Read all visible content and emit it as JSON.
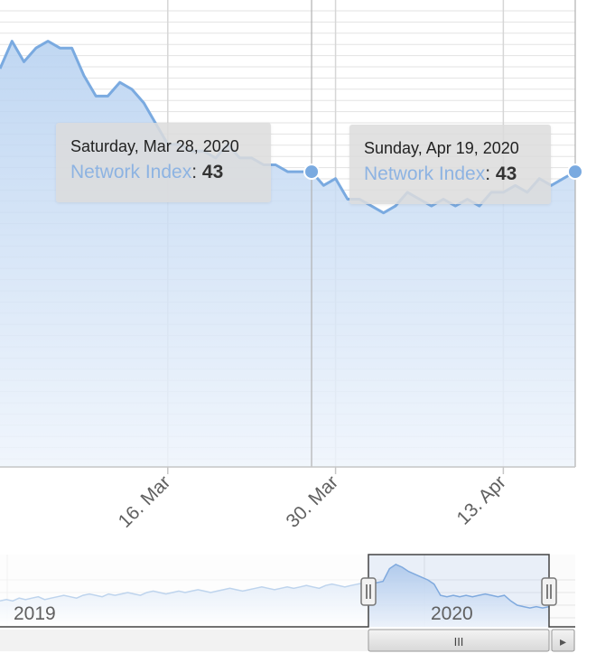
{
  "chart_data": {
    "type": "area",
    "series": [
      {
        "name": "Network Index",
        "color": "#7aaae0",
        "points": [
          [
            "2020-03-02",
            58
          ],
          [
            "2020-03-03",
            62
          ],
          [
            "2020-03-04",
            59
          ],
          [
            "2020-03-05",
            61
          ],
          [
            "2020-03-06",
            62
          ],
          [
            "2020-03-07",
            61
          ],
          [
            "2020-03-08",
            61
          ],
          [
            "2020-03-09",
            57
          ],
          [
            "2020-03-10",
            54
          ],
          [
            "2020-03-11",
            54
          ],
          [
            "2020-03-12",
            56
          ],
          [
            "2020-03-13",
            55
          ],
          [
            "2020-03-14",
            53
          ],
          [
            "2020-03-15",
            50
          ],
          [
            "2020-03-16",
            47
          ],
          [
            "2020-03-17",
            47
          ],
          [
            "2020-03-18",
            46
          ],
          [
            "2020-03-19",
            46
          ],
          [
            "2020-03-20",
            45
          ],
          [
            "2020-03-21",
            47
          ],
          [
            "2020-03-22",
            45
          ],
          [
            "2020-03-23",
            45
          ],
          [
            "2020-03-24",
            44
          ],
          [
            "2020-03-25",
            44
          ],
          [
            "2020-03-26",
            43
          ],
          [
            "2020-03-27",
            43
          ],
          [
            "2020-03-28",
            43
          ],
          [
            "2020-03-29",
            41
          ],
          [
            "2020-03-30",
            42
          ],
          [
            "2020-03-31",
            39
          ],
          [
            "2020-04-01",
            39
          ],
          [
            "2020-04-02",
            38
          ],
          [
            "2020-04-03",
            37
          ],
          [
            "2020-04-04",
            38
          ],
          [
            "2020-04-05",
            40
          ],
          [
            "2020-04-06",
            39
          ],
          [
            "2020-04-07",
            38
          ],
          [
            "2020-04-08",
            39
          ],
          [
            "2020-04-09",
            38
          ],
          [
            "2020-04-10",
            39
          ],
          [
            "2020-04-11",
            38
          ],
          [
            "2020-04-12",
            40
          ],
          [
            "2020-04-13",
            40
          ],
          [
            "2020-04-14",
            41
          ],
          [
            "2020-04-15",
            40
          ],
          [
            "2020-04-16",
            42
          ],
          [
            "2020-04-17",
            41
          ],
          [
            "2020-04-18",
            42
          ],
          [
            "2020-04-19",
            43
          ]
        ]
      }
    ],
    "x_ticks": [
      {
        "date": "2020-03-16",
        "label": "16. Mar"
      },
      {
        "date": "2020-03-30",
        "label": "30. Mar"
      },
      {
        "date": "2020-04-13",
        "label": "13. Apr"
      }
    ],
    "xlim": [
      "2020-03-02",
      "2020-04-19"
    ],
    "ylim": [
      0,
      68
    ],
    "grid": true,
    "tooltips": [
      {
        "date": "2020-03-28",
        "date_label": "Saturday, Mar 28, 2020",
        "series": "Network Index",
        "value": "43"
      },
      {
        "date": "2020-04-19",
        "date_label": "Sunday, Apr 19, 2020",
        "series": "Network Index",
        "value": "43"
      }
    ],
    "navigator": {
      "labels": [
        "2019",
        "2020"
      ],
      "selection": [
        "2020-03-02",
        "2020-04-19"
      ],
      "scrollbar_grip": "III",
      "scrollbar_arrow": "▸",
      "series": [
        12,
        13,
        12,
        14,
        13,
        14,
        15,
        13,
        14,
        15,
        16,
        15,
        14,
        16,
        17,
        16,
        15,
        17,
        16,
        17,
        18,
        17,
        16,
        18,
        19,
        18,
        17,
        18,
        19,
        18,
        19,
        20,
        19,
        18,
        19,
        20,
        21,
        20,
        19,
        20,
        21,
        22,
        21,
        20,
        21,
        22,
        21,
        22,
        23,
        22,
        21,
        23,
        24,
        23,
        22,
        23,
        24,
        25,
        24,
        25,
        26,
        35,
        38,
        36,
        33,
        31,
        29,
        27,
        24,
        16,
        15,
        16,
        15,
        16,
        15,
        16,
        17,
        16,
        15,
        16,
        12,
        9,
        8,
        7,
        8,
        7,
        8
      ]
    }
  }
}
